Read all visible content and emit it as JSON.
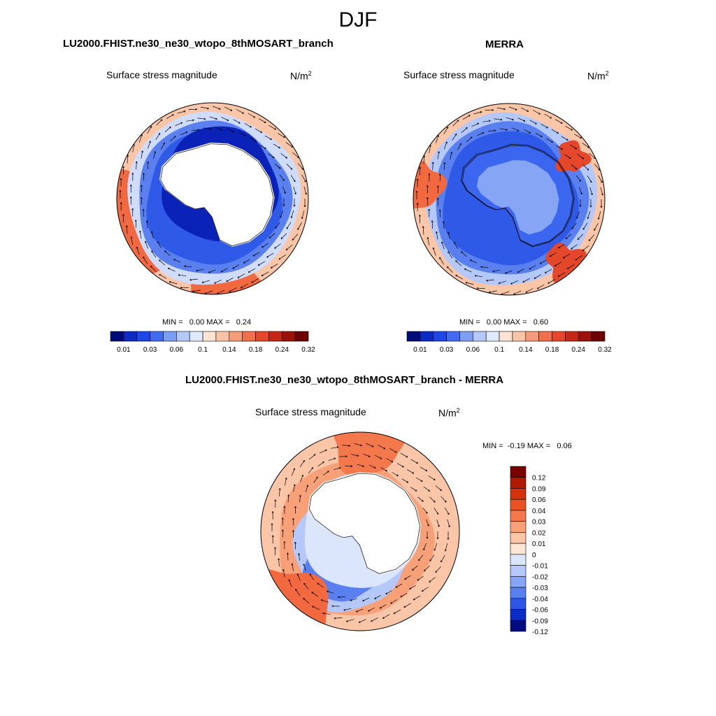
{
  "figure": {
    "season": "DJF"
  },
  "panels": [
    {
      "title": "LU2000.FHIST.ne30_ne30_wtopo_8thMOSART_branch",
      "variable": "Surface stress magnitude",
      "units": "N/m",
      "units_sup": "2",
      "minmax": "MIN =   0.00 MAX =   0.24"
    },
    {
      "title": "MERRA",
      "variable": "Surface stress magnitude",
      "units": "N/m",
      "units_sup": "2",
      "minmax": "MIN =   0.00 MAX =   0.60"
    },
    {
      "title": "LU2000.FHIST.ne30_ne30_wtopo_8thMOSART_branch - MERRA",
      "variable": "Surface stress magnitude",
      "units": "N/m",
      "units_sup": "2",
      "minmax": "MIN =  -0.19 MAX =   0.06"
    }
  ],
  "colorbars": {
    "abs": {
      "labels": [
        "0.01",
        "0.03",
        "0.06",
        "0.1",
        "0.14",
        "0.18",
        "0.24",
        "0.32"
      ],
      "colors": [
        "#000b7a",
        "#0a2bc4",
        "#1c48e6",
        "#3f6cf0",
        "#7d9ef5",
        "#b4c8fa",
        "#dfe9fd",
        "#fde3d2",
        "#fbc3a5",
        "#f79c78",
        "#f1704c",
        "#e4472a",
        "#c42815",
        "#9a120a",
        "#6e0000"
      ]
    },
    "diff": {
      "labels": [
        "0.12",
        "0.09",
        "0.06",
        "0.04",
        "0.03",
        "0.02",
        "0.01",
        "0",
        "-0.01",
        "-0.02",
        "-0.03",
        "-0.04",
        "-0.06",
        "-0.09",
        "-0.12"
      ],
      "colors": [
        "#7a0000",
        "#b01a05",
        "#d5320f",
        "#ea5226",
        "#f3784b",
        "#f8a078",
        "#fbc6a8",
        "#fde6d6",
        "#dbe6fc",
        "#b4c8fa",
        "#86a5f5",
        "#5a80f0",
        "#2d56e6",
        "#0a2bc4",
        "#000c7e"
      ]
    }
  },
  "colors": {
    "ocean_high": "#f2683f",
    "ocean_mid": "#fbc6a8",
    "ocean_low": "#cfdcfb",
    "blue_belt": "#2f5ae8",
    "deep_blue": "#0a22b8",
    "land_mask": "#ffffff",
    "vector": "#000000"
  }
}
